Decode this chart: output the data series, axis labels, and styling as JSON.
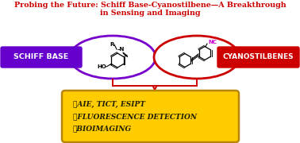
{
  "title_line1": "Probing the Future: Schiff Base-Cyanostilbene—A Breakthrough",
  "title_line2": "in Sensing and Imaging",
  "title_color": "#cc0000",
  "schiff_label": "SCHIFF BASE",
  "schiff_box_color": "#6600cc",
  "schiff_text_color": "#ffffff",
  "cyano_label": "CYANOSTILBENES",
  "cyano_box_color": "#cc0000",
  "cyano_text_color": "#ffffff",
  "left_ellipse_color": "#7700cc",
  "right_ellipse_color": "#cc0000",
  "connector_color": "#cc0000",
  "bullet_box_color": "#ffcc00",
  "bullet_border_color": "#b8860b",
  "bullet_text_color": "#222200",
  "bullet_line1": "✓AIE, TICT, ESIPT",
  "bullet_line2": "✓FLUORESCENCE DETECTION",
  "bullet_line3": "✓BIOIMAGING",
  "bg_color": "#ffffff",
  "fig_w": 3.78,
  "fig_h": 1.8,
  "dpi": 100
}
